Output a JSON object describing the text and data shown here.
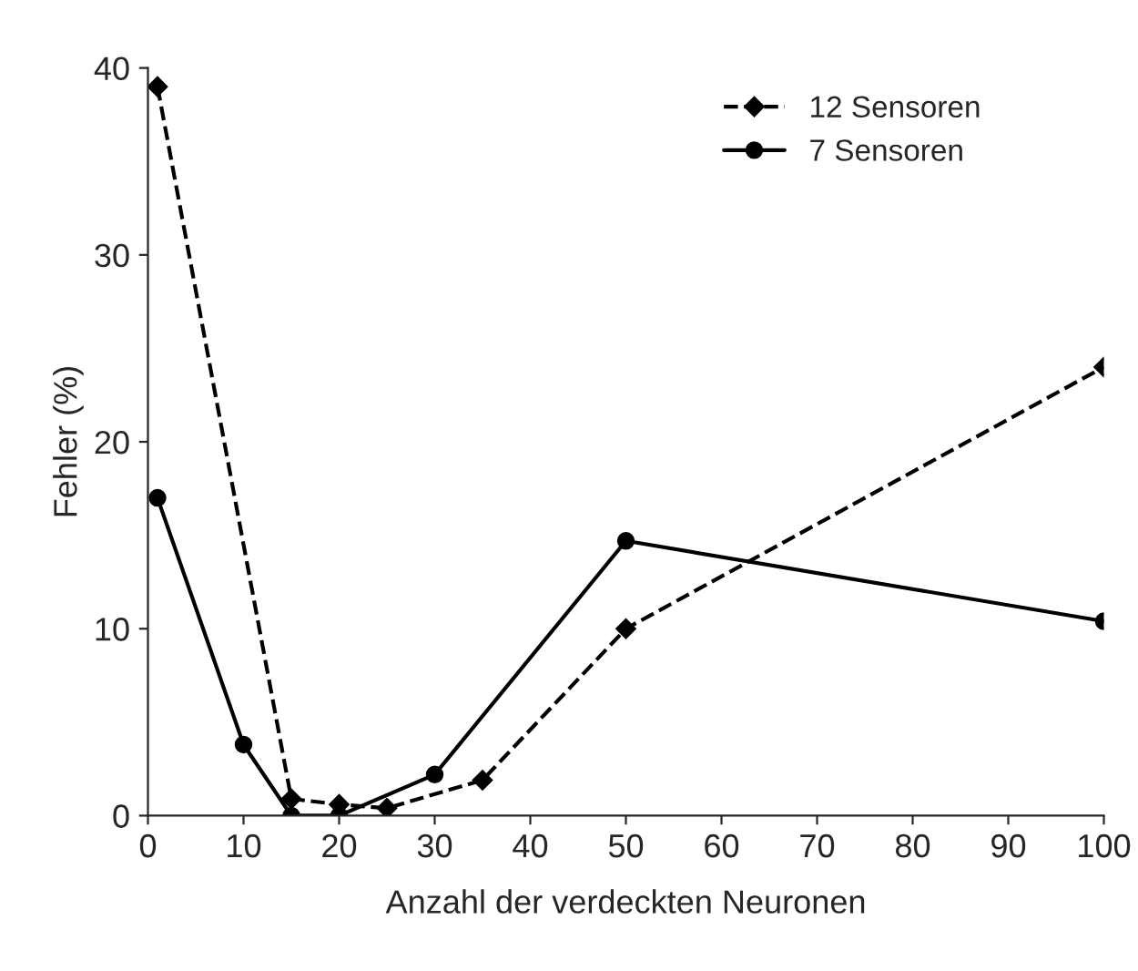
{
  "chart_data": {
    "type": "line",
    "xlabel": "Anzahl der verdeckten Neuronen",
    "ylabel": "Fehler (%)",
    "xlim": [
      0,
      100
    ],
    "xticks": [
      0,
      10,
      20,
      30,
      40,
      50,
      60,
      70,
      80,
      90,
      100
    ],
    "ylim": [
      0,
      40
    ],
    "yticks": [
      0,
      10,
      20,
      30,
      40
    ],
    "grid": false,
    "legend": "top right",
    "series": [
      {
        "name": "12 Sensoren",
        "color": "#000000",
        "line_style": "dashed",
        "marker": "diamond",
        "x": [
          1,
          15,
          20,
          25,
          35,
          50,
          100
        ],
        "values": [
          39,
          0.9,
          0.6,
          0.4,
          1.9,
          10,
          24
        ]
      },
      {
        "name": "7 Sensoren",
        "color": "#000000",
        "line_style": "solid",
        "marker": "circle",
        "x": [
          1,
          10,
          15,
          20,
          30,
          50,
          100
        ],
        "values": [
          17,
          3.8,
          0,
          0,
          2.2,
          14.7,
          10.4
        ]
      }
    ]
  }
}
